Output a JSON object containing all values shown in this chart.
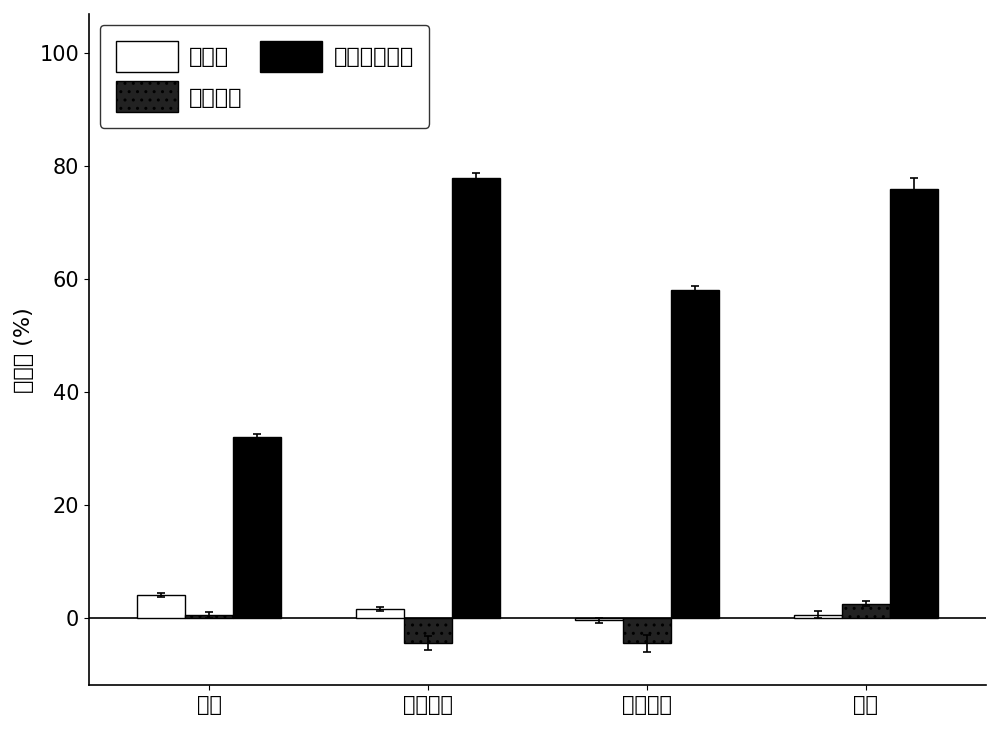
{
  "categories": [
    "木屑",
    "小麦秸秆",
    "玉米秸秆",
    "竹子"
  ],
  "series_order": [
    "生物炭",
    "过氧化氢",
    "过氧碳酸氢盐"
  ],
  "series": {
    "生物炭": {
      "values": [
        4.0,
        1.5,
        -0.5,
        0.5
      ],
      "errors": [
        0.4,
        0.4,
        0.5,
        0.6
      ],
      "color": "#ffffff",
      "edgecolor": "#000000",
      "hatch": ""
    },
    "过氧化氢": {
      "values": [
        0.5,
        -4.5,
        -4.5,
        2.5
      ],
      "errors": [
        0.5,
        1.2,
        1.5,
        0.5
      ],
      "color": "#222222",
      "edgecolor": "#000000",
      "hatch": ".."
    },
    "过氧碳酸氢盐": {
      "values": [
        32.0,
        78.0,
        58.0,
        76.0
      ],
      "errors": [
        0.5,
        0.8,
        0.8,
        2.0
      ],
      "color": "#000000",
      "edgecolor": "#000000",
      "hatch": ""
    }
  },
  "ylabel": "降解率 (%)",
  "ylim": [
    -12,
    107
  ],
  "yticks": [
    0,
    20,
    40,
    60,
    80,
    100
  ],
  "bar_width": 0.22,
  "legend_fontsize": 16,
  "tick_fontsize": 15,
  "label_fontsize": 16,
  "fig_width": 10.0,
  "fig_height": 7.29,
  "bg_color": "#f0f0f0"
}
